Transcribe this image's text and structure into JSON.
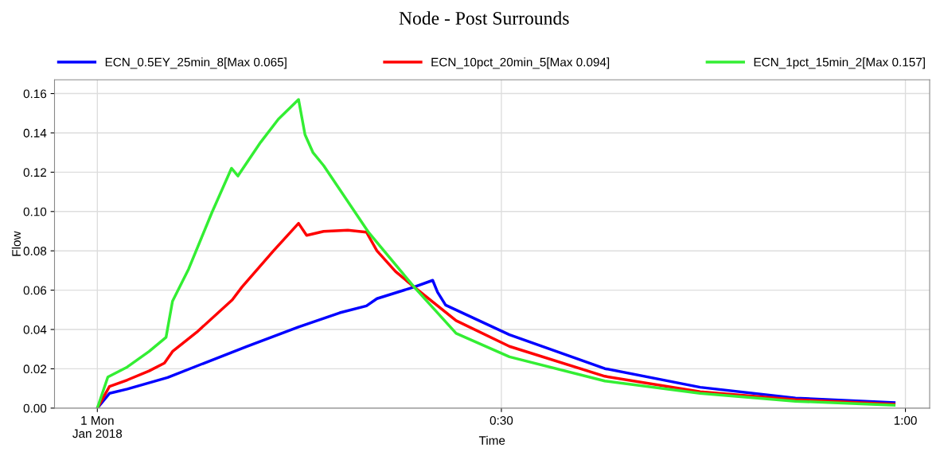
{
  "chart_data": {
    "type": "line",
    "title": "Node - Post Surrounds",
    "xlabel": "Time",
    "ylabel": "Flow",
    "xlim": [
      -0.053,
      1.03
    ],
    "ylim": [
      0,
      0.167
    ],
    "xticks": [
      {
        "value": 0,
        "label": "1 Mon\nJan 2018"
      },
      {
        "value": 0.5,
        "label": "0:30"
      },
      {
        "value": 1.0,
        "label": "1:00"
      }
    ],
    "yticks": [
      {
        "value": 0,
        "label": "0.00"
      },
      {
        "value": 0.02,
        "label": "0.02"
      },
      {
        "value": 0.04,
        "label": "0.04"
      },
      {
        "value": 0.06,
        "label": "0.06"
      },
      {
        "value": 0.08,
        "label": "0.08"
      },
      {
        "value": 0.1,
        "label": "0.10"
      },
      {
        "value": 0.12,
        "label": "0.12"
      },
      {
        "value": 0.14,
        "label": "0.14"
      },
      {
        "value": 0.16,
        "label": "0.16"
      }
    ],
    "grid": true,
    "legend": "top",
    "marker": "none",
    "line_style": "solid",
    "series": [
      {
        "name": "ECN_0.5EY_25min_8[Max 0.065]",
        "color": "#0000ff",
        "x": [
          0,
          0.015,
          0.037,
          0.087,
          0.136,
          0.185,
          0.249,
          0.3,
          0.333,
          0.346,
          0.392,
          0.415,
          0.421,
          0.431,
          0.51,
          0.628,
          0.746,
          0.864,
          0.986
        ],
        "values": [
          0,
          0.0075,
          0.0097,
          0.0156,
          0.0235,
          0.0314,
          0.0413,
          0.0485,
          0.052,
          0.0557,
          0.0616,
          0.065,
          0.059,
          0.0524,
          0.0373,
          0.0201,
          0.0106,
          0.0051,
          0.0028
        ]
      },
      {
        "name": "ECN_10pct_20min_5[Max 0.094]",
        "color": "#ff0000",
        "x": [
          0,
          0.015,
          0.037,
          0.064,
          0.083,
          0.093,
          0.123,
          0.167,
          0.179,
          0.218,
          0.249,
          0.259,
          0.28,
          0.31,
          0.333,
          0.346,
          0.369,
          0.392,
          0.444,
          0.51,
          0.628,
          0.746,
          0.864,
          0.986
        ],
        "values": [
          0,
          0.011,
          0.0143,
          0.0189,
          0.0229,
          0.0288,
          0.0386,
          0.0551,
          0.0616,
          0.08,
          0.094,
          0.0879,
          0.0899,
          0.0905,
          0.0895,
          0.08,
          0.0695,
          0.0616,
          0.0445,
          0.0314,
          0.0162,
          0.0083,
          0.0043,
          0.002
        ]
      },
      {
        "name": "ECN_1pct_15min_2[Max 0.157]",
        "color": "#33ee33",
        "x": [
          0,
          0.013,
          0.037,
          0.064,
          0.085,
          0.093,
          0.113,
          0.142,
          0.166,
          0.174,
          0.202,
          0.224,
          0.249,
          0.257,
          0.267,
          0.28,
          0.336,
          0.392,
          0.444,
          0.51,
          0.628,
          0.746,
          0.864,
          0.986
        ],
        "values": [
          0,
          0.0158,
          0.0209,
          0.0288,
          0.036,
          0.0544,
          0.0708,
          0.0997,
          0.122,
          0.1181,
          0.1352,
          0.147,
          0.157,
          0.1391,
          0.1299,
          0.1234,
          0.0892,
          0.0616,
          0.038,
          0.0261,
          0.0138,
          0.0075,
          0.0035,
          0.0015
        ]
      }
    ]
  }
}
